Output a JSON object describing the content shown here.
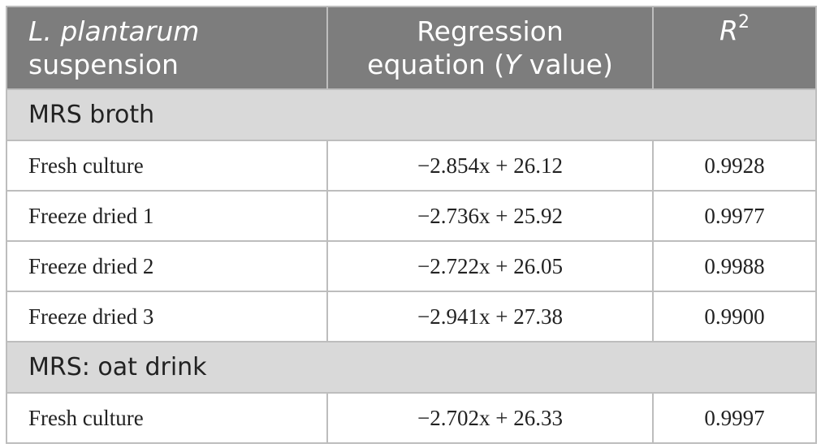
{
  "header": {
    "col1_italic": "L. plantarum",
    "col1_rest": "suspension",
    "col2_line1": "Regression",
    "col2_pre": "equation (",
    "col2_italic": "Y",
    "col2_post": " value)",
    "col3_base": "R",
    "col3_sup": "2"
  },
  "sections": [
    {
      "title": "MRS broth",
      "rows": [
        {
          "label": "Fresh culture",
          "equation": "−2.854x + 26.12",
          "r2": "0.9928"
        },
        {
          "label": "Freeze dried 1",
          "equation": "−2.736x + 25.92",
          "r2": "0.9977"
        },
        {
          "label": "Freeze dried 2",
          "equation": "−2.722x + 26.05",
          "r2": "0.9988"
        },
        {
          "label": "Freeze dried 3",
          "equation": "−2.941x + 27.38",
          "r2": "0.9900"
        }
      ]
    },
    {
      "title": "MRS: oat drink",
      "rows": [
        {
          "label": "Fresh culture",
          "equation": "−2.702x + 26.33",
          "r2": "0.9997"
        }
      ]
    }
  ]
}
